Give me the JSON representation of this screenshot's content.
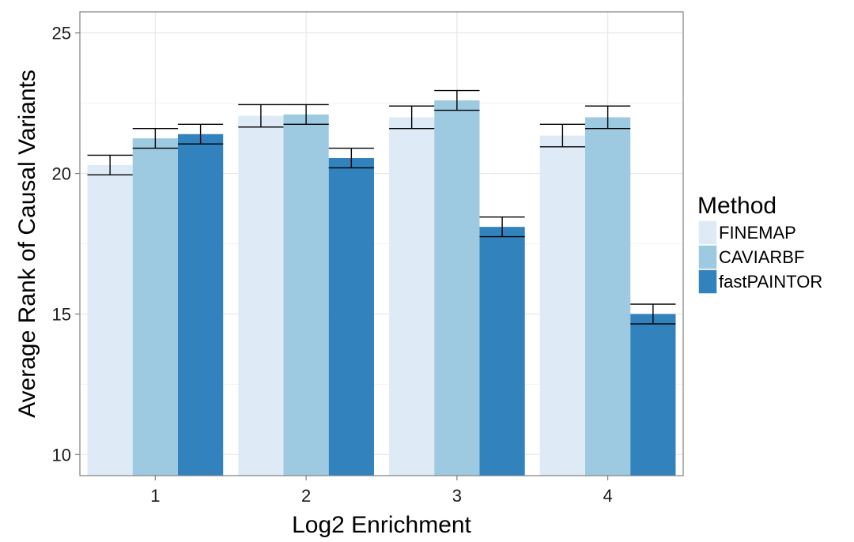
{
  "chart_data": {
    "type": "bar",
    "xlabel": "Log2 Enrichment",
    "ylabel": "Average Rank of Causal Variants",
    "categories": [
      "1",
      "2",
      "3",
      "4"
    ],
    "y_ticks": [
      10,
      15,
      20,
      25
    ],
    "ylim": [
      9.25,
      25.75
    ],
    "grid": true,
    "legend": {
      "title": "Method",
      "position": "right"
    },
    "series": [
      {
        "name": "FINEMAP",
        "color": "#deebf7",
        "values": [
          20.3,
          22.05,
          22.0,
          21.35
        ],
        "error_low": [
          19.95,
          21.65,
          21.6,
          20.95
        ],
        "error_high": [
          20.65,
          22.45,
          22.4,
          21.75
        ]
      },
      {
        "name": "CAVIARBF",
        "color": "#9ecae1",
        "values": [
          21.25,
          22.1,
          22.6,
          22.0
        ],
        "error_low": [
          20.9,
          21.75,
          22.25,
          21.6
        ],
        "error_high": [
          21.6,
          22.45,
          22.95,
          22.4
        ]
      },
      {
        "name": "fastPAINTOR",
        "color": "#3182bd",
        "values": [
          21.4,
          20.55,
          18.1,
          15.0
        ],
        "error_low": [
          21.05,
          20.2,
          17.75,
          14.65
        ],
        "error_high": [
          21.75,
          20.9,
          18.45,
          15.35
        ]
      }
    ]
  }
}
